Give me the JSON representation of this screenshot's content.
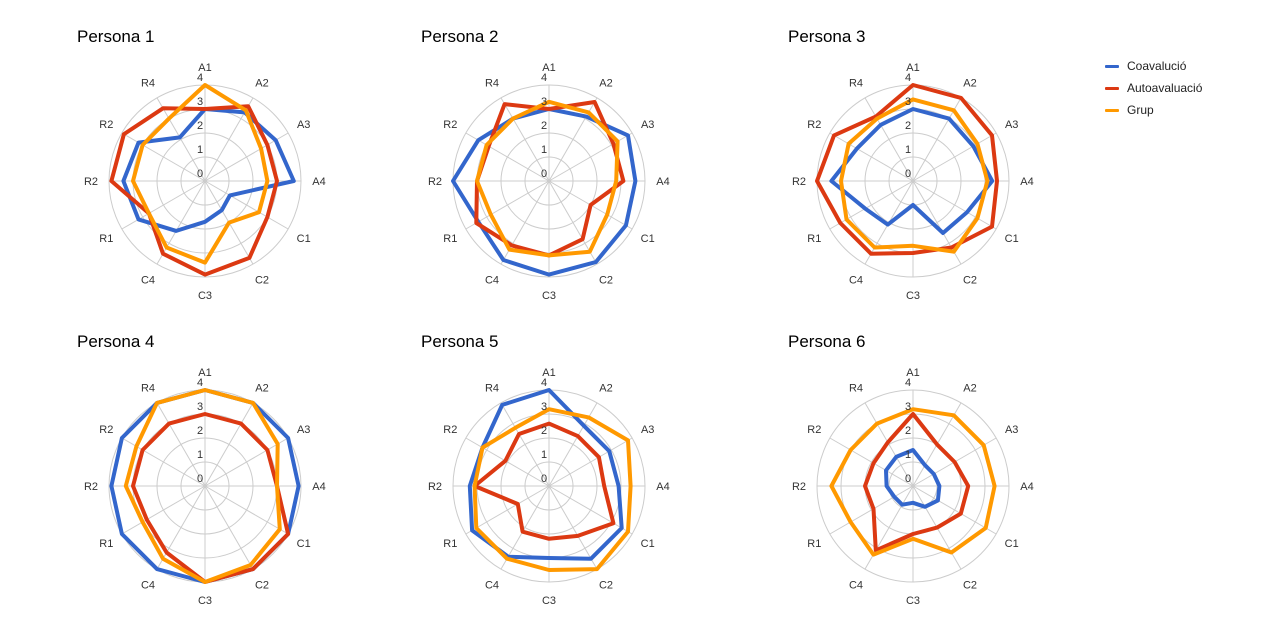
{
  "legend": {
    "placement": "top-right",
    "items": [
      {
        "label": "Coavalució",
        "color": "#3366CC"
      },
      {
        "label": "Autoavaluació",
        "color": "#DC3912"
      },
      {
        "label": "Grup",
        "color": "#FF9900"
      }
    ]
  },
  "chart_data": [
    {
      "type": "radar",
      "title": "Persona 1",
      "categories": [
        "A1",
        "A2",
        "A3",
        "A4",
        "C1",
        "C2",
        "C3",
        "C4",
        "R1",
        "R2",
        "R2",
        "R4"
      ],
      "rlim": [
        0,
        4
      ],
      "ticks": [
        "0",
        "1",
        "2",
        "3",
        "4"
      ],
      "grid": true,
      "series": [
        {
          "name": "Coavalució",
          "values": [
            3.0,
            3.3,
            3.4,
            3.7,
            1.2,
            1.4,
            1.7,
            2.4,
            3.2,
            3.4,
            3.2,
            2.1
          ]
        },
        {
          "name": "Autoavaluació",
          "values": [
            3.0,
            3.6,
            3.0,
            3.0,
            3.0,
            3.7,
            3.9,
            3.5,
            2.7,
            3.9,
            3.9,
            3.5
          ]
        },
        {
          "name": "Grup",
          "values": [
            4.0,
            3.4,
            2.7,
            2.6,
            2.6,
            2.0,
            3.4,
            3.2,
            2.7,
            3.0,
            3.0,
            3.0
          ]
        }
      ]
    },
    {
      "type": "radar",
      "title": "Persona 2",
      "categories": [
        "A1",
        "A2",
        "A3",
        "A4",
        "C1",
        "C2",
        "C3",
        "C4",
        "R1",
        "R2",
        "R2",
        "R4"
      ],
      "rlim": [
        0,
        4
      ],
      "ticks": [
        "0",
        "1",
        "2",
        "3",
        "4"
      ],
      "grid": true,
      "series": [
        {
          "name": "Coavalució",
          "values": [
            3.0,
            3.1,
            3.8,
            3.6,
            3.7,
            3.9,
            3.9,
            3.8,
            3.4,
            4.0,
            3.4,
            3.0
          ]
        },
        {
          "name": "Autoavaluació",
          "values": [
            3.0,
            3.8,
            3.1,
            3.1,
            2.0,
            2.8,
            3.1,
            3.1,
            3.5,
            3.0,
            2.9,
            3.7
          ]
        },
        {
          "name": "Grup",
          "values": [
            3.3,
            3.3,
            3.3,
            2.8,
            2.8,
            3.4,
            3.1,
            3.3,
            2.8,
            3.0,
            3.0,
            3.0
          ]
        }
      ]
    },
    {
      "type": "radar",
      "title": "Persona 3",
      "categories": [
        "A1",
        "A2",
        "A3",
        "A4",
        "C1",
        "C2",
        "C3",
        "C4",
        "R1",
        "R2",
        "R2",
        "R4"
      ],
      "rlim": [
        0,
        4
      ],
      "ticks": [
        "0",
        "1",
        "2",
        "3",
        "4"
      ],
      "grid": true,
      "series": [
        {
          "name": "Coavalució",
          "values": [
            3.0,
            3.0,
            2.9,
            3.3,
            2.6,
            2.5,
            1.0,
            2.1,
            2.3,
            3.4,
            2.7,
            2.7
          ]
        },
        {
          "name": "Autoavaluació",
          "values": [
            4.0,
            4.0,
            3.8,
            3.5,
            3.8,
            3.2,
            3.0,
            3.5,
            3.5,
            4.0,
            3.8,
            3.1
          ]
        },
        {
          "name": "Grup",
          "values": [
            3.4,
            3.4,
            3.1,
            3.1,
            3.1,
            3.4,
            2.7,
            3.2,
            3.2,
            3.0,
            3.1,
            3.0
          ]
        }
      ]
    },
    {
      "type": "radar",
      "title": "Persona 4",
      "categories": [
        "A1",
        "A2",
        "A3",
        "A4",
        "C1",
        "C2",
        "C3",
        "C4",
        "R1",
        "R2",
        "R2",
        "R4"
      ],
      "rlim": [
        0,
        4
      ],
      "ticks": [
        "0",
        "1",
        "2",
        "3",
        "4"
      ],
      "grid": true,
      "series": [
        {
          "name": "Coavalució",
          "values": [
            4.0,
            4.0,
            4.0,
            3.9,
            4.0,
            4.0,
            4.0,
            4.0,
            4.0,
            3.9,
            4.0,
            4.0
          ]
        },
        {
          "name": "Autoavaluació",
          "values": [
            3.0,
            3.0,
            3.0,
            3.0,
            4.0,
            4.0,
            4.0,
            3.2,
            2.8,
            3.0,
            3.0,
            3.0
          ]
        },
        {
          "name": "Grup",
          "values": [
            4.0,
            4.0,
            3.5,
            3.0,
            3.6,
            3.8,
            4.0,
            3.5,
            3.0,
            3.3,
            3.3,
            4.0
          ]
        }
      ]
    },
    {
      "type": "radar",
      "title": "Persona 5",
      "categories": [
        "A1",
        "A2",
        "A3",
        "A4",
        "C1",
        "C2",
        "C3",
        "C4",
        "R1",
        "R2",
        "R2",
        "R4"
      ],
      "rlim": [
        0,
        4
      ],
      "ticks": [
        "0",
        "1",
        "2",
        "3",
        "4"
      ],
      "grid": true,
      "series": [
        {
          "name": "Coavalució",
          "values": [
            4.0,
            2.9,
            2.9,
            2.9,
            3.5,
            3.5,
            3.0,
            3.4,
            3.7,
            3.3,
            3.2,
            3.9
          ]
        },
        {
          "name": "Autoavaluació",
          "values": [
            2.6,
            2.4,
            2.4,
            2.3,
            3.1,
            2.4,
            2.2,
            2.2,
            1.5,
            3.1,
            2.1,
            2.5
          ]
        },
        {
          "name": "Grup",
          "values": [
            3.2,
            3.3,
            3.8,
            3.4,
            3.8,
            4.0,
            3.5,
            3.5,
            3.5,
            3.1,
            3.2,
            2.8
          ]
        }
      ]
    },
    {
      "type": "radar",
      "title": "Persona 6",
      "categories": [
        "A1",
        "A2",
        "A3",
        "A4",
        "C1",
        "C2",
        "C3",
        "C4",
        "R1",
        "R2",
        "R2",
        "R4"
      ],
      "rlim": [
        0,
        4
      ],
      "ticks": [
        "0",
        "1",
        "2",
        "3",
        "4"
      ],
      "grid": true,
      "series": [
        {
          "name": "Coavalució",
          "values": [
            1.5,
            1.0,
            1.0,
            1.1,
            1.2,
            1.0,
            0.7,
            0.9,
            0.9,
            1.1,
            1.3,
            1.4
          ]
        },
        {
          "name": "Autoavaluació",
          "values": [
            3.0,
            2.0,
            2.0,
            2.3,
            2.3,
            2.0,
            2.0,
            3.1,
            1.9,
            2.0,
            1.9,
            2.1
          ]
        },
        {
          "name": "Grup",
          "values": [
            3.2,
            3.4,
            3.4,
            3.4,
            3.5,
            3.2,
            2.2,
            3.3,
            3.0,
            3.4,
            3.0,
            3.0
          ]
        }
      ]
    }
  ]
}
